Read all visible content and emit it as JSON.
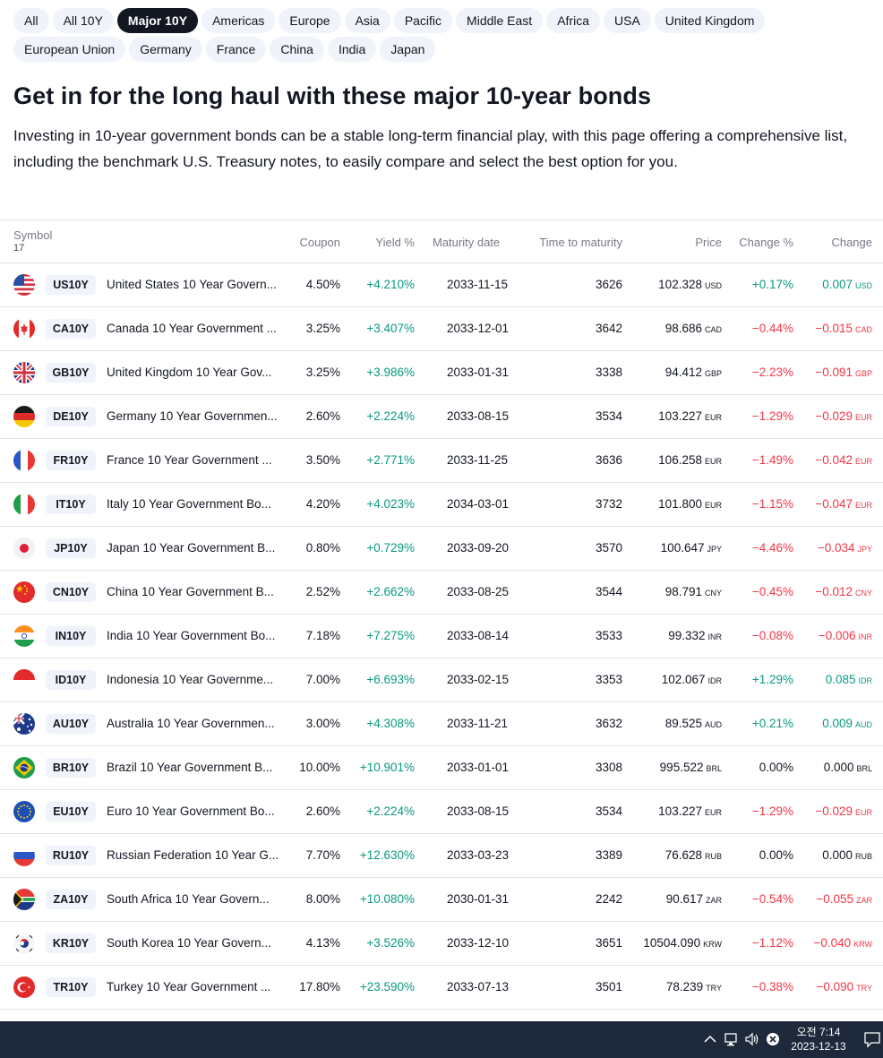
{
  "filters": {
    "row1": [
      "All",
      "All 10Y",
      "Major 10Y",
      "Americas",
      "Europe",
      "Asia",
      "Pacific",
      "Middle East",
      "Africa",
      "USA",
      "United Kingdom"
    ],
    "row2": [
      "European Union",
      "Germany",
      "France",
      "China",
      "India",
      "Japan"
    ],
    "active": "Major 10Y"
  },
  "heading": "Get in for the long haul with these major 10-year bonds",
  "intro": "Investing in 10-year government bonds can be a stable long-term financial play, with this page offering a comprehensive list, including the benchmark U.S. Treasury notes, to easily compare and select the best option for you.",
  "table": {
    "headers": {
      "symbol": "Symbol",
      "count": "17",
      "coupon": "Coupon",
      "yield": "Yield %",
      "maturity": "Maturity date",
      "ttm": "Time to maturity",
      "price": "Price",
      "change_pct": "Change %",
      "change": "Change"
    },
    "rows": [
      {
        "flag": "us",
        "ticker": "US10Y",
        "name": "United States 10 Year Govern...",
        "coupon": "4.50%",
        "yield": "+4.210%",
        "maturity": "2033-11-15",
        "ttm": "3626",
        "price": "102.328",
        "unit": "USD",
        "chgp": "+0.17%",
        "chg": "0.007",
        "dir": "up"
      },
      {
        "flag": "ca",
        "ticker": "CA10Y",
        "name": "Canada 10 Year Government ...",
        "coupon": "3.25%",
        "yield": "+3.407%",
        "maturity": "2033-12-01",
        "ttm": "3642",
        "price": "98.686",
        "unit": "CAD",
        "chgp": "−0.44%",
        "chg": "−0.015",
        "dir": "down"
      },
      {
        "flag": "gb",
        "ticker": "GB10Y",
        "name": "United Kingdom 10 Year Gov...",
        "coupon": "3.25%",
        "yield": "+3.986%",
        "maturity": "2033-01-31",
        "ttm": "3338",
        "price": "94.412",
        "unit": "GBP",
        "chgp": "−2.23%",
        "chg": "−0.091",
        "dir": "down"
      },
      {
        "flag": "de",
        "ticker": "DE10Y",
        "name": "Germany 10 Year Governmen...",
        "coupon": "2.60%",
        "yield": "+2.224%",
        "maturity": "2033-08-15",
        "ttm": "3534",
        "price": "103.227",
        "unit": "EUR",
        "chgp": "−1.29%",
        "chg": "−0.029",
        "dir": "down"
      },
      {
        "flag": "fr",
        "ticker": "FR10Y",
        "name": "France 10 Year Government ...",
        "coupon": "3.50%",
        "yield": "+2.771%",
        "maturity": "2033-11-25",
        "ttm": "3636",
        "price": "106.258",
        "unit": "EUR",
        "chgp": "−1.49%",
        "chg": "−0.042",
        "dir": "down"
      },
      {
        "flag": "it",
        "ticker": "IT10Y",
        "name": "Italy 10 Year Government Bo...",
        "coupon": "4.20%",
        "yield": "+4.023%",
        "maturity": "2034-03-01",
        "ttm": "3732",
        "price": "101.800",
        "unit": "EUR",
        "chgp": "−1.15%",
        "chg": "−0.047",
        "dir": "down"
      },
      {
        "flag": "jp",
        "ticker": "JP10Y",
        "name": "Japan 10 Year Government B...",
        "coupon": "0.80%",
        "yield": "+0.729%",
        "maturity": "2033-09-20",
        "ttm": "3570",
        "price": "100.647",
        "unit": "JPY",
        "chgp": "−4.46%",
        "chg": "−0.034",
        "dir": "down"
      },
      {
        "flag": "cn",
        "ticker": "CN10Y",
        "name": "China 10 Year Government B...",
        "coupon": "2.52%",
        "yield": "+2.662%",
        "maturity": "2033-08-25",
        "ttm": "3544",
        "price": "98.791",
        "unit": "CNY",
        "chgp": "−0.45%",
        "chg": "−0.012",
        "dir": "down"
      },
      {
        "flag": "in",
        "ticker": "IN10Y",
        "name": "India 10 Year Government Bo...",
        "coupon": "7.18%",
        "yield": "+7.275%",
        "maturity": "2033-08-14",
        "ttm": "3533",
        "price": "99.332",
        "unit": "INR",
        "chgp": "−0.08%",
        "chg": "−0.006",
        "dir": "down"
      },
      {
        "flag": "id",
        "ticker": "ID10Y",
        "name": "Indonesia 10 Year Governme...",
        "coupon": "7.00%",
        "yield": "+6.693%",
        "maturity": "2033-02-15",
        "ttm": "3353",
        "price": "102.067",
        "unit": "IDR",
        "chgp": "+1.29%",
        "chg": "0.085",
        "dir": "up"
      },
      {
        "flag": "au",
        "ticker": "AU10Y",
        "name": "Australia 10 Year Governmen...",
        "coupon": "3.00%",
        "yield": "+4.308%",
        "maturity": "2033-11-21",
        "ttm": "3632",
        "price": "89.525",
        "unit": "AUD",
        "chgp": "+0.21%",
        "chg": "0.009",
        "dir": "up"
      },
      {
        "flag": "br",
        "ticker": "BR10Y",
        "name": "Brazil 10 Year Government B...",
        "coupon": "10.00%",
        "yield": "+10.901%",
        "maturity": "2033-01-01",
        "ttm": "3308",
        "price": "995.522",
        "unit": "BRL",
        "chgp": "0.00%",
        "chg": "0.000",
        "dir": "neu"
      },
      {
        "flag": "eu",
        "ticker": "EU10Y",
        "name": "Euro 10 Year Government Bo...",
        "coupon": "2.60%",
        "yield": "+2.224%",
        "maturity": "2033-08-15",
        "ttm": "3534",
        "price": "103.227",
        "unit": "EUR",
        "chgp": "−1.29%",
        "chg": "−0.029",
        "dir": "down"
      },
      {
        "flag": "ru",
        "ticker": "RU10Y",
        "name": "Russian Federation 10 Year G...",
        "coupon": "7.70%",
        "yield": "+12.630%",
        "maturity": "2033-03-23",
        "ttm": "3389",
        "price": "76.628",
        "unit": "RUB",
        "chgp": "0.00%",
        "chg": "0.000",
        "dir": "neu"
      },
      {
        "flag": "za",
        "ticker": "ZA10Y",
        "name": "South Africa 10 Year Govern...",
        "coupon": "8.00%",
        "yield": "+10.080%",
        "maturity": "2030-01-31",
        "ttm": "2242",
        "price": "90.617",
        "unit": "ZAR",
        "chgp": "−0.54%",
        "chg": "−0.055",
        "dir": "down"
      },
      {
        "flag": "kr",
        "ticker": "KR10Y",
        "name": "South Korea 10 Year Govern...",
        "coupon": "4.13%",
        "yield": "+3.526%",
        "maturity": "2033-12-10",
        "ttm": "3651",
        "price": "10504.090",
        "unit": "KRW",
        "chgp": "−1.12%",
        "chg": "−0.040",
        "dir": "down"
      },
      {
        "flag": "tr",
        "ticker": "TR10Y",
        "name": "Turkey 10 Year Government ...",
        "coupon": "17.80%",
        "yield": "+23.590%",
        "maturity": "2033-07-13",
        "ttm": "3501",
        "price": "78.239",
        "unit": "TRY",
        "chgp": "−0.38%",
        "chg": "−0.090",
        "dir": "down"
      }
    ]
  },
  "colors": {
    "up": "#089981",
    "down": "#f23645",
    "chip_bg": "#f0f3fa",
    "chip_active": "#131722",
    "taskbar": "#1e2a3c"
  },
  "taskbar": {
    "time": "오전 7:14",
    "date": "2023-12-13",
    "icons": [
      "chevron-up-icon",
      "network-icon",
      "volume-icon",
      "close-circle-icon",
      "notification-icon"
    ]
  }
}
